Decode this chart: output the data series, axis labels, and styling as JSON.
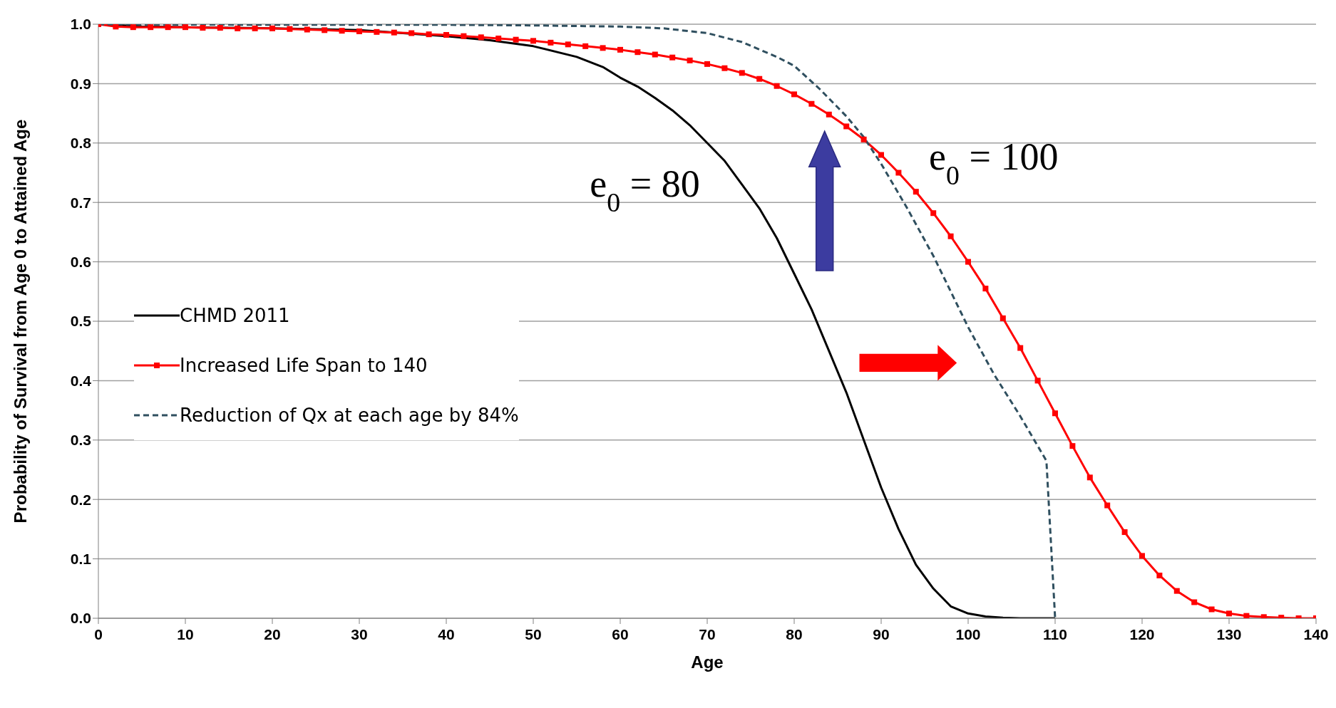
{
  "chart_data": {
    "type": "line",
    "xlabel": "Age",
    "ylabel": "Probability of Survival from Age 0 to Attained Age",
    "xlim": [
      0,
      140
    ],
    "xticks": [
      0,
      10,
      20,
      30,
      40,
      50,
      60,
      70,
      80,
      90,
      100,
      110,
      120,
      130,
      140
    ],
    "ylim": [
      0,
      1
    ],
    "yticks": [
      {
        "value": 0,
        "label": "0.0"
      },
      0.1,
      0.2,
      0.3,
      0.4,
      0.5,
      0.6,
      0.7,
      0.8,
      0.9,
      {
        "value": 1,
        "label": "1.0"
      }
    ],
    "grid": "y",
    "legend": "left",
    "series": [
      {
        "name": "CHMD 2011",
        "color": "#000000",
        "line_style": "solid",
        "marker": "none",
        "x": [
          0,
          5,
          10,
          20,
          30,
          40,
          45,
          50,
          55,
          58,
          60,
          62,
          64,
          66,
          68,
          70,
          72,
          74,
          76,
          78,
          80,
          82,
          84,
          86,
          88,
          90,
          92,
          94,
          96,
          98,
          100,
          102,
          104,
          106,
          108,
          110
        ],
        "values": [
          1.0,
          0.996,
          0.995,
          0.993,
          0.99,
          0.98,
          0.973,
          0.963,
          0.945,
          0.928,
          0.91,
          0.895,
          0.876,
          0.855,
          0.83,
          0.8,
          0.77,
          0.73,
          0.69,
          0.64,
          0.58,
          0.52,
          0.45,
          0.38,
          0.3,
          0.22,
          0.15,
          0.09,
          0.05,
          0.02,
          0.008,
          0.003,
          0.001,
          0,
          0,
          0
        ]
      },
      {
        "name": "Increased Life Span to 140",
        "color": "#ff0000",
        "line_style": "solid",
        "marker": "square",
        "x": [
          0,
          2,
          4,
          6,
          8,
          10,
          12,
          14,
          16,
          18,
          20,
          22,
          24,
          26,
          28,
          30,
          32,
          34,
          36,
          38,
          40,
          42,
          44,
          46,
          48,
          50,
          52,
          54,
          56,
          58,
          60,
          62,
          64,
          66,
          68,
          70,
          72,
          74,
          76,
          78,
          80,
          82,
          84,
          86,
          88,
          90,
          92,
          94,
          96,
          98,
          100,
          102,
          104,
          106,
          108,
          110,
          112,
          114,
          116,
          118,
          120,
          122,
          124,
          126,
          128,
          130,
          132,
          134,
          136,
          138,
          140
        ],
        "values": [
          1.0,
          0.996,
          0.995,
          0.995,
          0.995,
          0.995,
          0.994,
          0.994,
          0.993,
          0.993,
          0.993,
          0.992,
          0.991,
          0.99,
          0.989,
          0.988,
          0.987,
          0.986,
          0.985,
          0.983,
          0.982,
          0.98,
          0.978,
          0.976,
          0.974,
          0.972,
          0.969,
          0.966,
          0.963,
          0.96,
          0.957,
          0.953,
          0.949,
          0.944,
          0.939,
          0.933,
          0.926,
          0.918,
          0.908,
          0.896,
          0.882,
          0.866,
          0.848,
          0.828,
          0.806,
          0.78,
          0.75,
          0.718,
          0.682,
          0.643,
          0.6,
          0.555,
          0.505,
          0.455,
          0.4,
          0.345,
          0.29,
          0.237,
          0.19,
          0.145,
          0.105,
          0.072,
          0.046,
          0.027,
          0.015,
          0.008,
          0.004,
          0.002,
          0.001,
          0,
          0
        ]
      },
      {
        "name": "Reduction of Qx at each age by 84%",
        "color": "#2f4f5f",
        "line_style": "dashed",
        "marker": "none",
        "x": [
          0,
          20,
          40,
          50,
          60,
          65,
          70,
          74,
          78,
          80,
          83,
          86,
          88,
          90,
          93,
          96,
          100,
          103,
          106,
          108,
          109,
          110
        ],
        "values": [
          1.0,
          0.999,
          0.999,
          0.998,
          0.996,
          0.993,
          0.985,
          0.97,
          0.945,
          0.93,
          0.89,
          0.845,
          0.81,
          0.765,
          0.69,
          0.61,
          0.49,
          0.41,
          0.34,
          0.29,
          0.265,
          0
        ]
      }
    ],
    "annotations": [
      "e$_{0}$ = 80",
      "e$_{0}$ = 100"
    ]
  }
}
